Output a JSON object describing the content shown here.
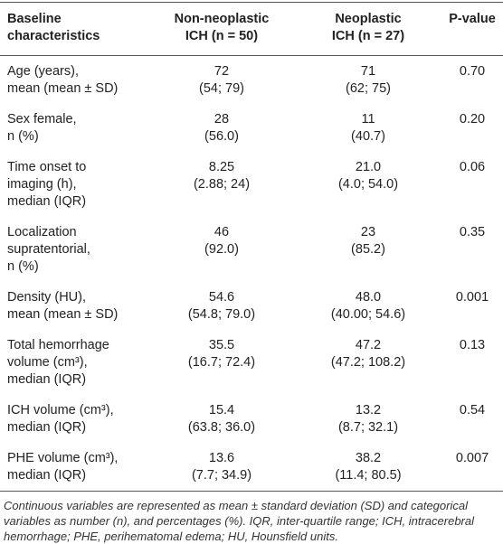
{
  "table": {
    "header": [
      [
        "Baseline",
        "characteristics"
      ],
      [
        "Non-neoplastic",
        "ICH (n = 50)"
      ],
      [
        "Neoplastic",
        "ICH (n = 27)"
      ],
      [
        "P-value"
      ]
    ],
    "rows": [
      [
        [
          "Age (years),",
          "mean (mean ± SD)"
        ],
        [
          "72",
          "(54; 79)"
        ],
        [
          "71",
          "(62; 75)"
        ],
        [
          "0.70"
        ]
      ],
      [
        [
          "Sex female,",
          "n (%)"
        ],
        [
          "28",
          "(56.0)"
        ],
        [
          "11",
          "(40.7)"
        ],
        [
          "0.20"
        ]
      ],
      [
        [
          "Time onset to",
          "imaging (h),",
          "median (IQR)"
        ],
        [
          "8.25",
          "(2.88; 24)"
        ],
        [
          "21.0",
          "(4.0; 54.0)"
        ],
        [
          "0.06"
        ]
      ],
      [
        [
          "Localization",
          "supratentorial,",
          "n (%)"
        ],
        [
          "46",
          "(92.0)"
        ],
        [
          "23",
          "(85.2)"
        ],
        [
          "0.35"
        ]
      ],
      [
        [
          "Density (HU),",
          "mean (mean ± SD)"
        ],
        [
          "54.6",
          "(54.8; 79.0)"
        ],
        [
          "48.0",
          "(40.00; 54.6)"
        ],
        [
          "0.001"
        ]
      ],
      [
        [
          "Total hemorrhage",
          "volume (cm³),",
          "median (IQR)"
        ],
        [
          "35.5",
          "(16.7; 72.4)"
        ],
        [
          "47.2",
          "(47.2; 108.2)"
        ],
        [
          "0.13"
        ]
      ],
      [
        [
          "ICH volume (cm³),",
          "median (IQR)"
        ],
        [
          "15.4",
          "(63.8; 36.0)"
        ],
        [
          "13.2",
          "(8.7; 32.1)"
        ],
        [
          "0.54"
        ]
      ],
      [
        [
          "PHE volume (cm³),",
          "median (IQR)"
        ],
        [
          "13.6",
          "(7.7; 34.9)"
        ],
        [
          "38.2",
          "(11.4; 80.5)"
        ],
        [
          "0.007"
        ]
      ]
    ]
  },
  "footnote": "Continuous variables are represented as mean ± standard deviation (SD) and categorical variables as number (n), and percentages (%). IQR, inter-quartile range; ICH, intracerebral hemorrhage; PHE, perihematomal edema; HU, Hounsfield units."
}
